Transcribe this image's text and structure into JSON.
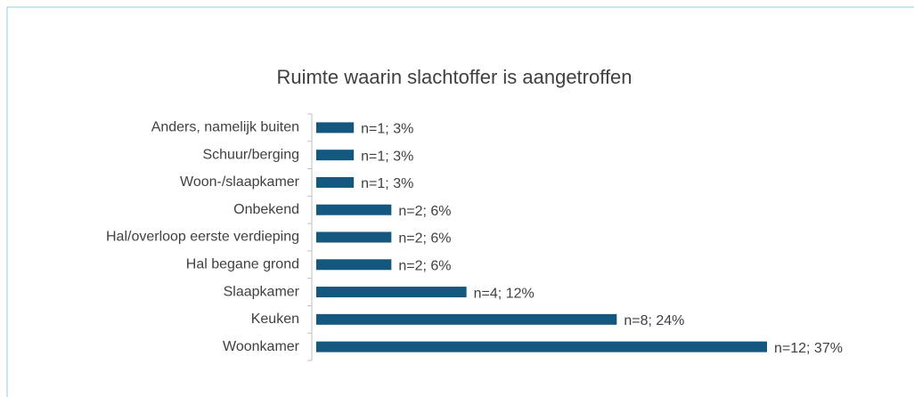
{
  "chart_data": {
    "type": "barh",
    "title": "Ruimte waarin slachtoffer is aangetroffen",
    "categories": [
      "Anders, namelijk buiten",
      "Schuur/berging",
      "Woon-/slaapkamer",
      "Onbekend",
      "Hal/overloop eerste verdieping",
      "Hal begane grond",
      "Slaapkamer",
      "Keuken",
      "Woonkamer"
    ],
    "values": [
      1,
      1,
      1,
      2,
      2,
      2,
      4,
      8,
      12
    ],
    "value_labels": [
      "n=1; 3%",
      "n=1; 3%",
      "n=1; 3%",
      "n=2; 6%",
      "n=2; 6%",
      "n=2; 6%",
      "n=4; 12%",
      "n=8; 24%",
      "n=12; 37%"
    ],
    "color": "#15587f"
  }
}
